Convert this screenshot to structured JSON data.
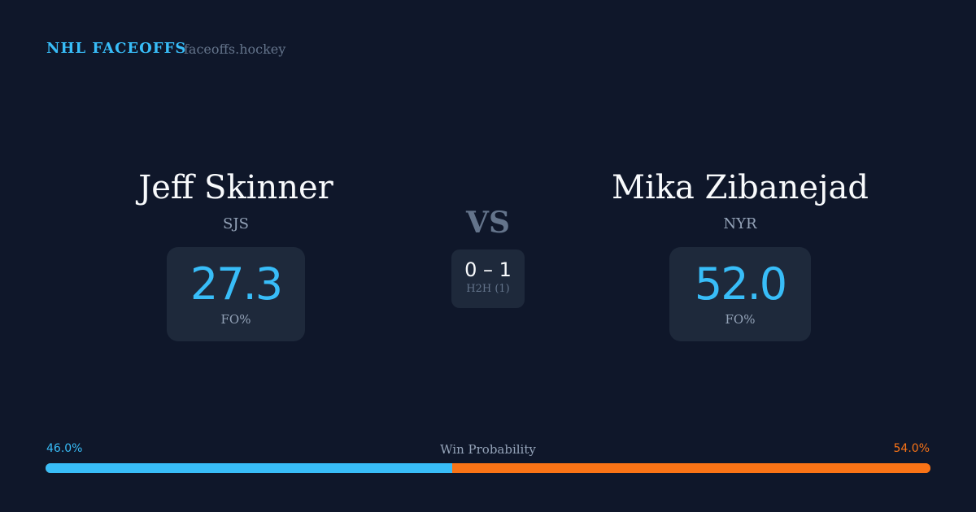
{
  "header": {
    "brand": "NHL FACEOFFS",
    "domain": "faceoffs.hockey"
  },
  "player1": {
    "name": "Jeff Skinner",
    "team": "SJS",
    "fo_pct": "27.3",
    "fo_label": "FO%"
  },
  "player2": {
    "name": "Mika Zibanejad",
    "team": "NYR",
    "fo_pct": "52.0",
    "fo_label": "FO%"
  },
  "vs": "VS",
  "h2h": {
    "score": "0 – 1",
    "label": "H2H (1)"
  },
  "win_probability": {
    "title": "Win Probability",
    "left_label": "46.0%",
    "right_label": "54.0%",
    "left_value": 46.0,
    "right_value": 54.0,
    "left_color": "#38bdf8",
    "right_color": "#f97316"
  }
}
